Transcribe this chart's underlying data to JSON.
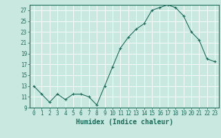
{
  "x": [
    0,
    1,
    2,
    3,
    4,
    5,
    6,
    7,
    8,
    9,
    10,
    11,
    12,
    13,
    14,
    15,
    16,
    17,
    18,
    19,
    20,
    21,
    22,
    23
  ],
  "y": [
    13,
    11.5,
    10,
    11.5,
    10.5,
    11.5,
    11.5,
    11,
    9.5,
    13,
    16.5,
    20,
    22,
    23.5,
    24.5,
    27,
    27.5,
    28,
    27.5,
    26,
    23,
    21.5,
    18,
    17.5
  ],
  "line_color": "#1a6b5a",
  "marker": "+",
  "marker_size": 3,
  "bg_color": "#c8e8e0",
  "grid_color": "#ffffff",
  "xlabel": "Humidex (Indice chaleur)",
  "ylim": [
    9,
    28
  ],
  "yticks": [
    9,
    11,
    13,
    15,
    17,
    19,
    21,
    23,
    25,
    27
  ],
  "xticks": [
    0,
    1,
    2,
    3,
    4,
    5,
    6,
    7,
    8,
    9,
    10,
    11,
    12,
    13,
    14,
    15,
    16,
    17,
    18,
    19,
    20,
    21,
    22,
    23
  ],
  "tick_label_fontsize": 5.5,
  "xlabel_fontsize": 7
}
